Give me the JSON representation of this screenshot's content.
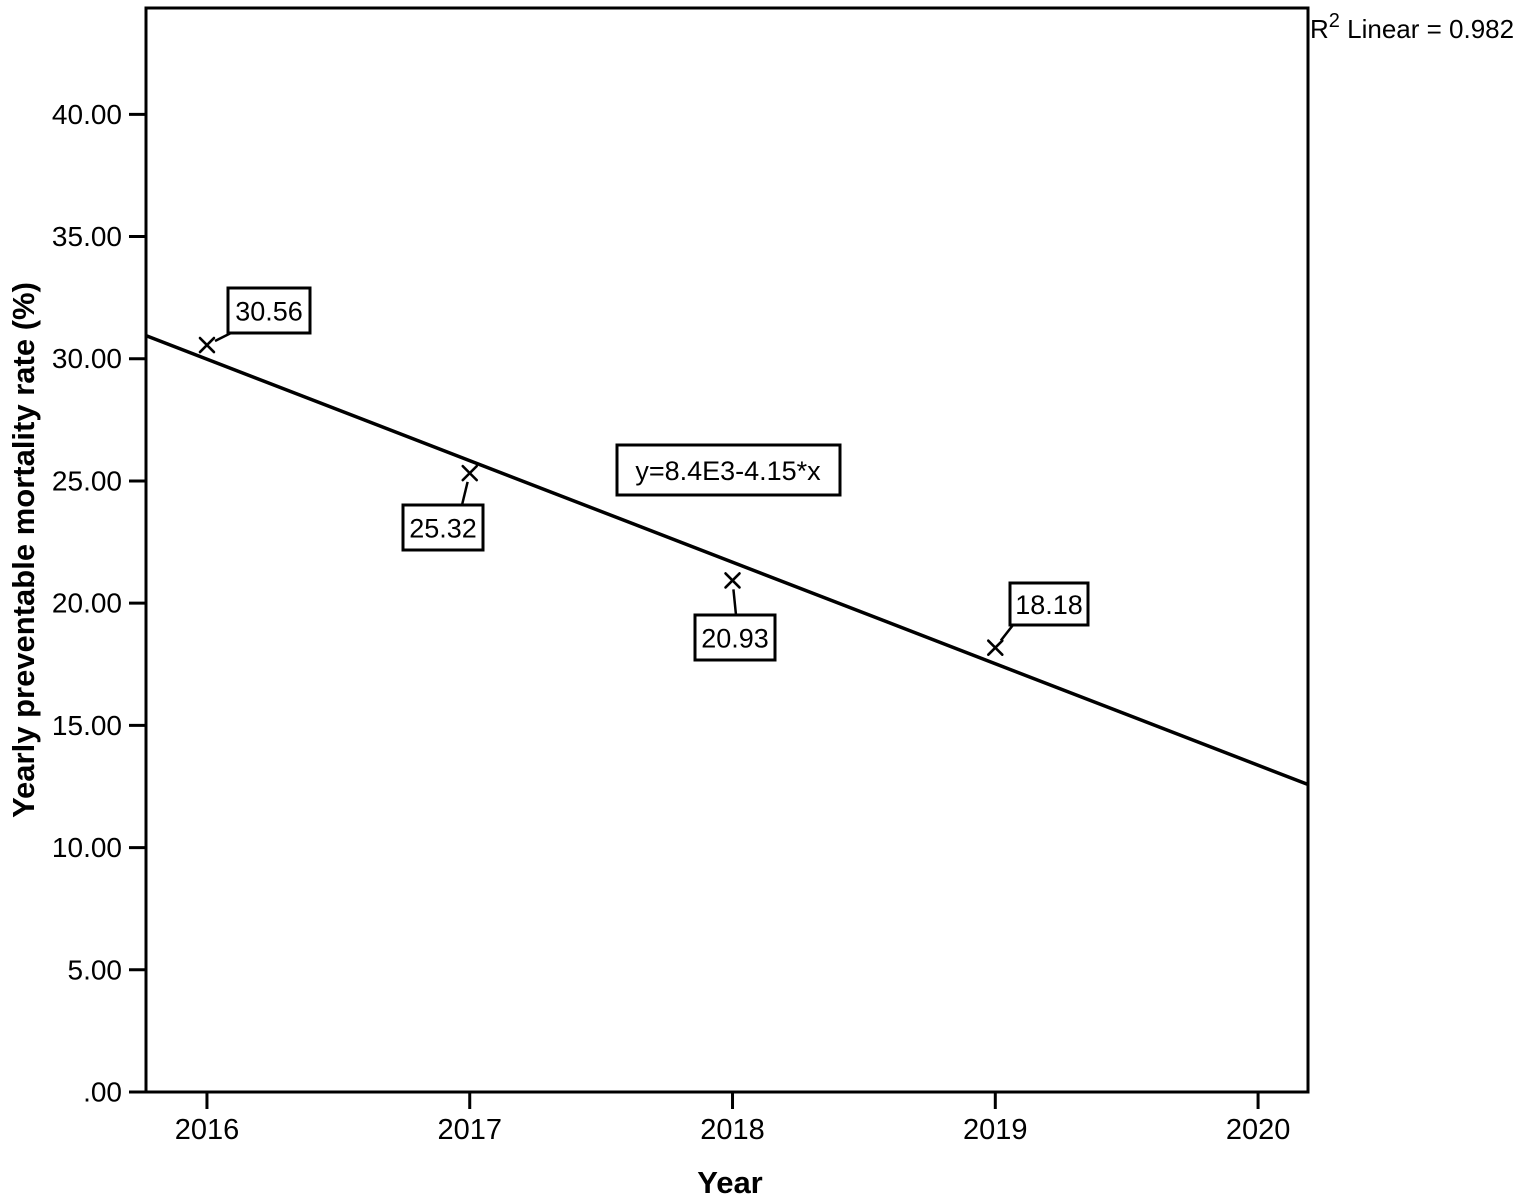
{
  "chart_data": {
    "type": "scatter",
    "title": "",
    "xlabel": "Year",
    "ylabel": "Yearly preventable mortality rate (%)",
    "x": [
      2016,
      2017,
      2018,
      2019
    ],
    "y": [
      30.56,
      25.32,
      20.93,
      18.18
    ],
    "point_labels": [
      "30.56",
      "25.32",
      "20.93",
      "18.18"
    ],
    "xlim": [
      2015.768,
      2020.19
    ],
    "ylim": [
      0,
      44.35
    ],
    "x_ticks": [
      2016,
      2017,
      2018,
      2019,
      2020
    ],
    "x_tick_labels": [
      "2016",
      "2017",
      "2018",
      "2019",
      "2020"
    ],
    "y_ticks": [
      0,
      5,
      10,
      15,
      20,
      25,
      30,
      35,
      40
    ],
    "y_tick_labels": [
      ".00",
      "5.00",
      "10.00",
      "15.00",
      "20.00",
      "25.00",
      "30.00",
      "35.00",
      "40.00"
    ],
    "regression": {
      "slope": -4.153,
      "intercept": 8402.43,
      "equation_label": "y=8.4E3-4.15*x"
    },
    "annotations": {
      "r_squared_full": "R2 Linear = 0.982",
      "r_base": "R",
      "r_sup": "2",
      "r_rest": " Linear = 0.982"
    },
    "marker": "x",
    "grid": false,
    "legend": "none",
    "colors": {
      "foreground": "#000000",
      "background": "#ffffff"
    }
  }
}
